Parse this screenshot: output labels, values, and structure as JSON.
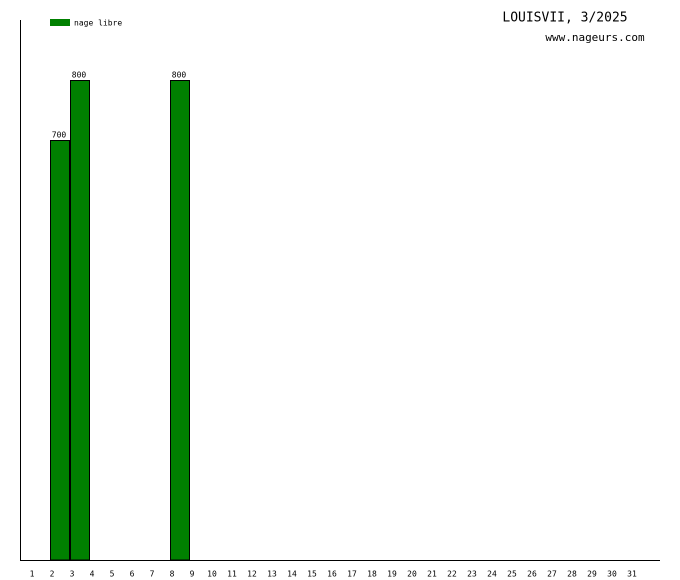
{
  "chart_data": {
    "type": "bar",
    "title": "LOUISVII, 3/2025",
    "subtitle": "www.nageurs.com",
    "categories": [
      "1",
      "2",
      "3",
      "4",
      "5",
      "6",
      "7",
      "8",
      "9",
      "10",
      "11",
      "12",
      "13",
      "14",
      "15",
      "16",
      "17",
      "18",
      "19",
      "20",
      "21",
      "22",
      "23",
      "24",
      "25",
      "26",
      "27",
      "28",
      "29",
      "30",
      "31"
    ],
    "series": [
      {
        "name": "nage libre",
        "color": "#008000",
        "values": [
          null,
          700,
          800,
          null,
          null,
          null,
          null,
          800,
          null,
          null,
          null,
          null,
          null,
          null,
          null,
          null,
          null,
          null,
          null,
          null,
          null,
          null,
          null,
          null,
          null,
          null,
          null,
          null,
          null,
          null,
          null
        ]
      }
    ],
    "ylim": [
      0,
      900
    ],
    "legend": "top-left"
  }
}
